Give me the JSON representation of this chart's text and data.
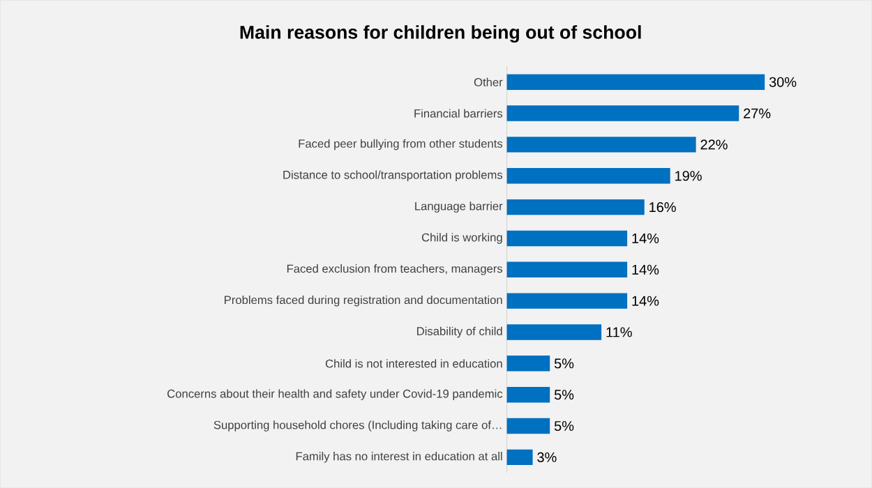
{
  "chart_data": {
    "type": "bar",
    "orientation": "horizontal",
    "title": "Main reasons for children being out of school",
    "categories": [
      "Other",
      "Financial barriers",
      "Faced peer bullying from other students",
      "Distance to school/transportation problems",
      "Language barrier",
      "Child is working",
      "Faced exclusion from teachers, managers",
      "Problems faced during registration and documentation",
      "Disability of child",
      "Child is not interested in education",
      "Concerns about their health and safety under Covid-19 pandemic",
      "Supporting household chores (Including taking care of…",
      "Family has no interest in education at all"
    ],
    "values": [
      30,
      27,
      22,
      19,
      16,
      14,
      14,
      14,
      11,
      5,
      5,
      5,
      3
    ],
    "value_labels": [
      "30%",
      "27%",
      "22%",
      "19%",
      "16%",
      "14%",
      "14%",
      "14%",
      "11%",
      "5%",
      "5%",
      "5%",
      "3%"
    ],
    "color": "#0070c0"
  }
}
